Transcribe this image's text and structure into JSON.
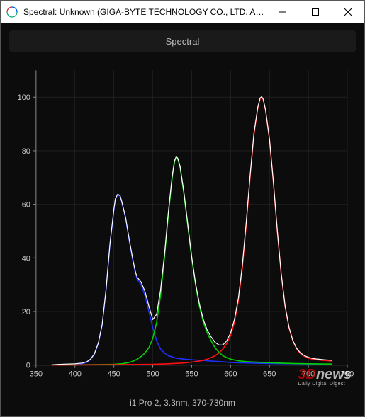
{
  "window": {
    "title": "Spectral: Unknown (GIGA-BYTE TECHNOLOGY CO., LTD. AORUS…"
  },
  "tab": {
    "label": "Spectral"
  },
  "caption": "i1 Pro 2, 3.3nm, 370-730nm",
  "watermark": {
    "brand_prefix": "3D",
    "brand_suffix": "news",
    "tagline": "Daily Digital Digest"
  },
  "chart": {
    "type": "line",
    "background_color": "#0c0c0c",
    "grid_color": "#2a2a2a",
    "axis_color": "#888888",
    "label_color": "#cccccc",
    "label_fontsize": 11,
    "xlim": [
      350,
      750
    ],
    "ylim": [
      0,
      110
    ],
    "xtick_step": 50,
    "ytick_step": 20,
    "ytick_max_label": 100,
    "series": [
      {
        "name": "blue",
        "color": "#2030ff",
        "line_width": 1.6,
        "data": [
          [
            370,
            0
          ],
          [
            380,
            0.2
          ],
          [
            390,
            0.3
          ],
          [
            400,
            0.4
          ],
          [
            410,
            0.6
          ],
          [
            415,
            1.0
          ],
          [
            420,
            2.0
          ],
          [
            425,
            4.0
          ],
          [
            430,
            8.0
          ],
          [
            435,
            15
          ],
          [
            440,
            28
          ],
          [
            445,
            45
          ],
          [
            450,
            58
          ],
          [
            452,
            62
          ],
          [
            455,
            63.5
          ],
          [
            458,
            63
          ],
          [
            460,
            61
          ],
          [
            465,
            55
          ],
          [
            470,
            46
          ],
          [
            475,
            38
          ],
          [
            478,
            34
          ],
          [
            480,
            32
          ],
          [
            485,
            30
          ],
          [
            490,
            26
          ],
          [
            495,
            20
          ],
          [
            500,
            14
          ],
          [
            505,
            9
          ],
          [
            510,
            6
          ],
          [
            515,
            4.5
          ],
          [
            520,
            3.5
          ],
          [
            530,
            2.6
          ],
          [
            540,
            2.2
          ],
          [
            550,
            2.0
          ],
          [
            560,
            1.8
          ],
          [
            570,
            1.6
          ],
          [
            580,
            1.4
          ],
          [
            590,
            1.2
          ],
          [
            600,
            1.0
          ],
          [
            620,
            0.8
          ],
          [
            650,
            0.6
          ],
          [
            680,
            0.5
          ],
          [
            700,
            0.4
          ],
          [
            730,
            0.3
          ]
        ]
      },
      {
        "name": "green",
        "color": "#00d000",
        "line_width": 1.6,
        "data": [
          [
            370,
            0
          ],
          [
            400,
            0.1
          ],
          [
            430,
            0.2
          ],
          [
            450,
            0.3
          ],
          [
            460,
            0.5
          ],
          [
            470,
            1.0
          ],
          [
            475,
            1.5
          ],
          [
            480,
            2.2
          ],
          [
            485,
            3.2
          ],
          [
            490,
            4.5
          ],
          [
            495,
            6.5
          ],
          [
            500,
            10
          ],
          [
            505,
            16
          ],
          [
            510,
            26
          ],
          [
            515,
            40
          ],
          [
            520,
            56
          ],
          [
            525,
            70
          ],
          [
            528,
            76
          ],
          [
            530,
            77.5
          ],
          [
            532,
            77
          ],
          [
            535,
            74
          ],
          [
            540,
            64
          ],
          [
            545,
            52
          ],
          [
            550,
            40
          ],
          [
            555,
            30
          ],
          [
            560,
            22
          ],
          [
            565,
            16
          ],
          [
            570,
            12
          ],
          [
            575,
            9
          ],
          [
            580,
            6.5
          ],
          [
            585,
            4.8
          ],
          [
            590,
            3.5
          ],
          [
            595,
            2.8
          ],
          [
            600,
            2.2
          ],
          [
            610,
            1.6
          ],
          [
            620,
            1.3
          ],
          [
            640,
            1.0
          ],
          [
            660,
            0.8
          ],
          [
            680,
            0.6
          ],
          [
            700,
            0.5
          ],
          [
            730,
            0.4
          ]
        ]
      },
      {
        "name": "red",
        "color": "#ff1010",
        "line_width": 1.6,
        "data": [
          [
            370,
            0
          ],
          [
            420,
            0.1
          ],
          [
            470,
            0.2
          ],
          [
            500,
            0.3
          ],
          [
            520,
            0.5
          ],
          [
            540,
            0.8
          ],
          [
            550,
            1.1
          ],
          [
            560,
            1.5
          ],
          [
            565,
            1.8
          ],
          [
            570,
            2.2
          ],
          [
            575,
            2.8
          ],
          [
            580,
            3.5
          ],
          [
            585,
            4.5
          ],
          [
            590,
            6
          ],
          [
            595,
            8
          ],
          [
            600,
            11
          ],
          [
            605,
            16
          ],
          [
            610,
            24
          ],
          [
            615,
            36
          ],
          [
            620,
            52
          ],
          [
            625,
            70
          ],
          [
            630,
            86
          ],
          [
            635,
            96
          ],
          [
            638,
            99.5
          ],
          [
            640,
            100
          ],
          [
            642,
            99
          ],
          [
            645,
            95
          ],
          [
            650,
            84
          ],
          [
            655,
            68
          ],
          [
            660,
            50
          ],
          [
            665,
            34
          ],
          [
            670,
            22
          ],
          [
            675,
            14
          ],
          [
            680,
            9
          ],
          [
            685,
            6
          ],
          [
            690,
            4.2
          ],
          [
            695,
            3.2
          ],
          [
            700,
            2.6
          ],
          [
            705,
            2.2
          ],
          [
            710,
            2.0
          ],
          [
            720,
            1.7
          ],
          [
            730,
            1.5
          ]
        ]
      },
      {
        "name": "white",
        "color": "#ffffff",
        "line_width": 1.2,
        "data": [
          [
            370,
            0.1
          ],
          [
            380,
            0.3
          ],
          [
            390,
            0.4
          ],
          [
            400,
            0.5
          ],
          [
            410,
            0.8
          ],
          [
            415,
            1.2
          ],
          [
            420,
            2.2
          ],
          [
            425,
            4.2
          ],
          [
            430,
            8.2
          ],
          [
            435,
            15.2
          ],
          [
            440,
            28.2
          ],
          [
            445,
            45.2
          ],
          [
            450,
            58.2
          ],
          [
            452,
            62.2
          ],
          [
            455,
            63.8
          ],
          [
            458,
            63.2
          ],
          [
            460,
            61.2
          ],
          [
            465,
            55.2
          ],
          [
            470,
            46.5
          ],
          [
            475,
            38.5
          ],
          [
            478,
            34.5
          ],
          [
            480,
            32.8
          ],
          [
            485,
            31
          ],
          [
            490,
            27.5
          ],
          [
            495,
            22
          ],
          [
            500,
            17
          ],
          [
            505,
            19
          ],
          [
            510,
            28
          ],
          [
            515,
            41
          ],
          [
            520,
            57
          ],
          [
            525,
            70.5
          ],
          [
            528,
            76.3
          ],
          [
            530,
            77.8
          ],
          [
            532,
            77.3
          ],
          [
            535,
            74.3
          ],
          [
            540,
            64.5
          ],
          [
            545,
            52.5
          ],
          [
            550,
            40.5
          ],
          [
            555,
            30.5
          ],
          [
            560,
            22.8
          ],
          [
            565,
            17
          ],
          [
            570,
            13
          ],
          [
            575,
            10.5
          ],
          [
            580,
            8.5
          ],
          [
            585,
            7.5
          ],
          [
            590,
            7.5
          ],
          [
            595,
            9
          ],
          [
            600,
            12
          ],
          [
            605,
            17
          ],
          [
            610,
            25
          ],
          [
            615,
            37
          ],
          [
            620,
            53
          ],
          [
            625,
            70.5
          ],
          [
            630,
            86.5
          ],
          [
            635,
            96.3
          ],
          [
            638,
            99.7
          ],
          [
            640,
            100.2
          ],
          [
            642,
            99.2
          ],
          [
            645,
            95.2
          ],
          [
            650,
            84.2
          ],
          [
            655,
            68.2
          ],
          [
            660,
            50.2
          ],
          [
            665,
            34.2
          ],
          [
            670,
            22.2
          ],
          [
            675,
            14.2
          ],
          [
            680,
            9.2
          ],
          [
            685,
            6.2
          ],
          [
            690,
            4.5
          ],
          [
            695,
            3.5
          ],
          [
            700,
            2.9
          ],
          [
            705,
            2.5
          ],
          [
            710,
            2.3
          ],
          [
            720,
            2.0
          ],
          [
            730,
            1.8
          ]
        ]
      }
    ]
  }
}
